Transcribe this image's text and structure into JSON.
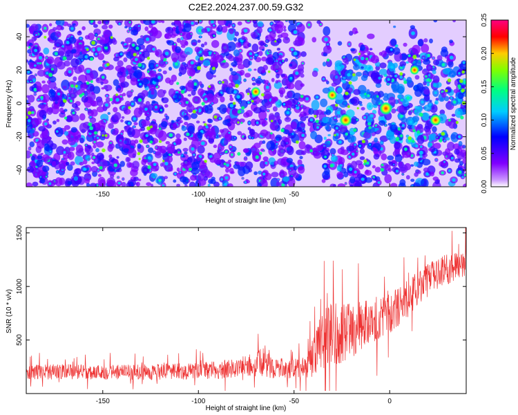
{
  "figure_title": "C2E2.2024.237.00.59.G32",
  "chart_data": [
    {
      "type": "heatmap",
      "xlabel": "Height of straight line (km)",
      "ylabel": "Frequency (Hz)",
      "xlim": [
        -190,
        40
      ],
      "ylim": [
        -50,
        50
      ],
      "xticks": [
        -150,
        -100,
        -50,
        0
      ],
      "yticks": [
        -40,
        -20,
        0,
        20,
        40
      ],
      "colorbar": {
        "label": "Normalized spectral amplitude",
        "range": [
          0.0,
          0.25
        ],
        "ticks": [
          "0.00",
          "0.05",
          "0.10",
          "0.15",
          "0.20",
          "0.25"
        ],
        "colors": [
          "#ffffff",
          "#cc99ff",
          "#8000ff",
          "#0000ff",
          "#00ccff",
          "#00ff80",
          "#80ff00",
          "#ffcc00",
          "#ff0000",
          "#ff0080"
        ]
      },
      "hotspots": [
        {
          "x": -2,
          "y": -3,
          "value": 0.24
        },
        {
          "x": -23,
          "y": -10,
          "value": 0.22
        },
        {
          "x": 24,
          "y": -10,
          "value": 0.19
        },
        {
          "x": -30,
          "y": 5,
          "value": 0.15
        },
        {
          "x": -70,
          "y": 7,
          "value": 0.14
        },
        {
          "x": 13,
          "y": 20,
          "value": 0.13
        }
      ]
    },
    {
      "type": "line",
      "xlabel": "Height of straight line (km)",
      "ylabel": "SNR (10 * v/v)",
      "xlim": [
        -190,
        40
      ],
      "ylim": [
        0,
        1550
      ],
      "xticks": [
        -150,
        -100,
        -50,
        0
      ],
      "yticks": [
        500,
        1000,
        1500
      ],
      "color": "#ee3333",
      "series": [
        {
          "x": [
            -190,
            -170,
            -150,
            -130,
            -110,
            -90,
            -80,
            -70,
            -65,
            -60,
            -50,
            -45,
            -40,
            -35,
            -30,
            -25,
            -20,
            -15,
            -10,
            -5,
            0,
            5,
            10,
            15,
            20,
            25,
            30,
            35,
            40
          ],
          "mean": [
            200,
            205,
            200,
            200,
            205,
            220,
            240,
            270,
            300,
            240,
            230,
            250,
            330,
            500,
            580,
            560,
            600,
            640,
            680,
            720,
            760,
            800,
            900,
            1000,
            1060,
            1120,
            1160,
            1200,
            1220
          ],
          "spread": [
            130,
            130,
            130,
            130,
            140,
            150,
            170,
            200,
            280,
            180,
            160,
            200,
            350,
            520,
            600,
            500,
            450,
            420,
            400,
            380,
            360,
            340,
            320,
            300,
            280,
            260,
            260,
            260,
            240
          ]
        }
      ]
    }
  ]
}
